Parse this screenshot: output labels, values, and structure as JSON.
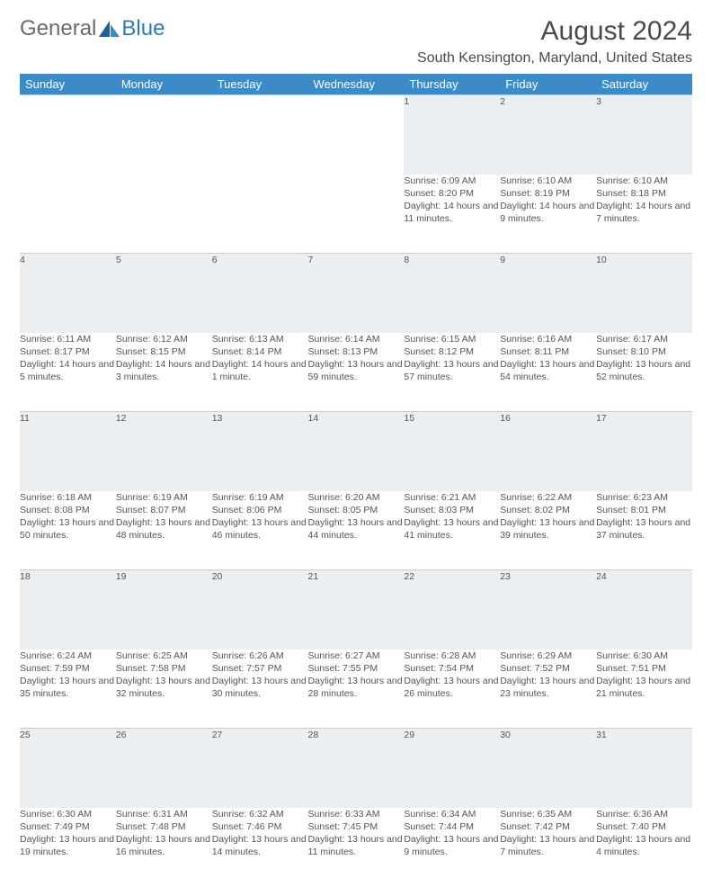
{
  "logo": {
    "part1": "General",
    "part2": "Blue"
  },
  "title": "August 2024",
  "location": "South Kensington, Maryland, United States",
  "header_bg": "#3b8bc9",
  "daynum_bg": "#eceff1",
  "dow": [
    "Sunday",
    "Monday",
    "Tuesday",
    "Wednesday",
    "Thursday",
    "Friday",
    "Saturday"
  ],
  "weeks": [
    [
      null,
      null,
      null,
      null,
      {
        "n": "1",
        "sr": "6:09 AM",
        "ss": "8:20 PM",
        "dl": "14 hours and 11 minutes."
      },
      {
        "n": "2",
        "sr": "6:10 AM",
        "ss": "8:19 PM",
        "dl": "14 hours and 9 minutes."
      },
      {
        "n": "3",
        "sr": "6:10 AM",
        "ss": "8:18 PM",
        "dl": "14 hours and 7 minutes."
      }
    ],
    [
      {
        "n": "4",
        "sr": "6:11 AM",
        "ss": "8:17 PM",
        "dl": "14 hours and 5 minutes."
      },
      {
        "n": "5",
        "sr": "6:12 AM",
        "ss": "8:15 PM",
        "dl": "14 hours and 3 minutes."
      },
      {
        "n": "6",
        "sr": "6:13 AM",
        "ss": "8:14 PM",
        "dl": "14 hours and 1 minute."
      },
      {
        "n": "7",
        "sr": "6:14 AM",
        "ss": "8:13 PM",
        "dl": "13 hours and 59 minutes."
      },
      {
        "n": "8",
        "sr": "6:15 AM",
        "ss": "8:12 PM",
        "dl": "13 hours and 57 minutes."
      },
      {
        "n": "9",
        "sr": "6:16 AM",
        "ss": "8:11 PM",
        "dl": "13 hours and 54 minutes."
      },
      {
        "n": "10",
        "sr": "6:17 AM",
        "ss": "8:10 PM",
        "dl": "13 hours and 52 minutes."
      }
    ],
    [
      {
        "n": "11",
        "sr": "6:18 AM",
        "ss": "8:08 PM",
        "dl": "13 hours and 50 minutes."
      },
      {
        "n": "12",
        "sr": "6:19 AM",
        "ss": "8:07 PM",
        "dl": "13 hours and 48 minutes."
      },
      {
        "n": "13",
        "sr": "6:19 AM",
        "ss": "8:06 PM",
        "dl": "13 hours and 46 minutes."
      },
      {
        "n": "14",
        "sr": "6:20 AM",
        "ss": "8:05 PM",
        "dl": "13 hours and 44 minutes."
      },
      {
        "n": "15",
        "sr": "6:21 AM",
        "ss": "8:03 PM",
        "dl": "13 hours and 41 minutes."
      },
      {
        "n": "16",
        "sr": "6:22 AM",
        "ss": "8:02 PM",
        "dl": "13 hours and 39 minutes."
      },
      {
        "n": "17",
        "sr": "6:23 AM",
        "ss": "8:01 PM",
        "dl": "13 hours and 37 minutes."
      }
    ],
    [
      {
        "n": "18",
        "sr": "6:24 AM",
        "ss": "7:59 PM",
        "dl": "13 hours and 35 minutes."
      },
      {
        "n": "19",
        "sr": "6:25 AM",
        "ss": "7:58 PM",
        "dl": "13 hours and 32 minutes."
      },
      {
        "n": "20",
        "sr": "6:26 AM",
        "ss": "7:57 PM",
        "dl": "13 hours and 30 minutes."
      },
      {
        "n": "21",
        "sr": "6:27 AM",
        "ss": "7:55 PM",
        "dl": "13 hours and 28 minutes."
      },
      {
        "n": "22",
        "sr": "6:28 AM",
        "ss": "7:54 PM",
        "dl": "13 hours and 26 minutes."
      },
      {
        "n": "23",
        "sr": "6:29 AM",
        "ss": "7:52 PM",
        "dl": "13 hours and 23 minutes."
      },
      {
        "n": "24",
        "sr": "6:30 AM",
        "ss": "7:51 PM",
        "dl": "13 hours and 21 minutes."
      }
    ],
    [
      {
        "n": "25",
        "sr": "6:30 AM",
        "ss": "7:49 PM",
        "dl": "13 hours and 19 minutes."
      },
      {
        "n": "26",
        "sr": "6:31 AM",
        "ss": "7:48 PM",
        "dl": "13 hours and 16 minutes."
      },
      {
        "n": "27",
        "sr": "6:32 AM",
        "ss": "7:46 PM",
        "dl": "13 hours and 14 minutes."
      },
      {
        "n": "28",
        "sr": "6:33 AM",
        "ss": "7:45 PM",
        "dl": "13 hours and 11 minutes."
      },
      {
        "n": "29",
        "sr": "6:34 AM",
        "ss": "7:44 PM",
        "dl": "13 hours and 9 minutes."
      },
      {
        "n": "30",
        "sr": "6:35 AM",
        "ss": "7:42 PM",
        "dl": "13 hours and 7 minutes."
      },
      {
        "n": "31",
        "sr": "6:36 AM",
        "ss": "7:40 PM",
        "dl": "13 hours and 4 minutes."
      }
    ]
  ],
  "labels": {
    "sunrise": "Sunrise: ",
    "sunset": "Sunset: ",
    "daylight": "Daylight: "
  }
}
